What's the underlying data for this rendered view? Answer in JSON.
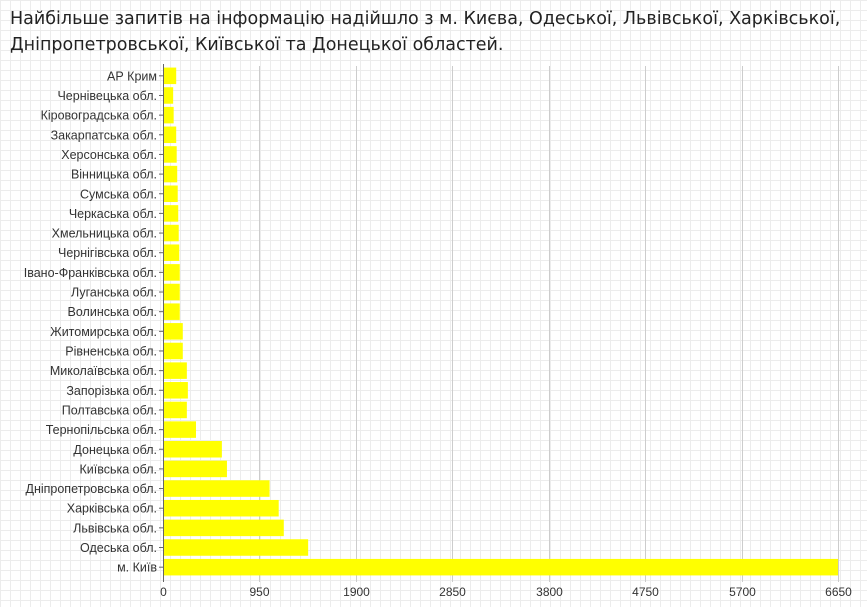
{
  "title": "Найбільше запитів на інформацію надійшло з м. Києва, Одеської, Львівської, Харківської, Дніпропетровської, Київської та Донецької областей.",
  "colors": {
    "bar": "#ffff00",
    "grid": "#cccccc",
    "axis": "#666666",
    "label": "#333333"
  },
  "chart_data": {
    "type": "bar",
    "orientation": "horizontal",
    "title": "Найбільше запитів на інформацію надійшло з м. Києва, Одеської, Львівської, Харківської, Дніпропетровської, Київської та Донецької областей.",
    "xlabel": "",
    "ylabel": "",
    "xlim": [
      0,
      6650
    ],
    "xticks": [
      0,
      950,
      1900,
      2850,
      3800,
      4750,
      5700,
      6650
    ],
    "grid": true,
    "legend": "none",
    "categories": [
      "АР Крим",
      "Чернівецька обл.",
      "Кіровоградська обл.",
      "Закарпатська обл.",
      "Херсонська обл.",
      "Вінницька обл.",
      "Сумська обл.",
      "Черкаська обл.",
      "Хмельницька обл.",
      "Чернігівська обл.",
      "Івано-Франківська обл.",
      "Луганська обл.",
      "Волинська обл.",
      "Житомирська обл.",
      "Рівненська обл.",
      "Миколаївська обл.",
      "Запорізька обл.",
      "Полтавська обл.",
      "Тернопільська обл.",
      "Донецька обл.",
      "Київська обл.",
      "Дніпропетровська обл.",
      "Харківська обл.",
      "Львівська обл.",
      "Одеська обл.",
      "м. Київ"
    ],
    "values": [
      130,
      100,
      105,
      130,
      135,
      140,
      145,
      150,
      155,
      160,
      165,
      165,
      165,
      195,
      195,
      235,
      245,
      235,
      325,
      580,
      630,
      1050,
      1140,
      1190,
      1430,
      6650
    ]
  }
}
